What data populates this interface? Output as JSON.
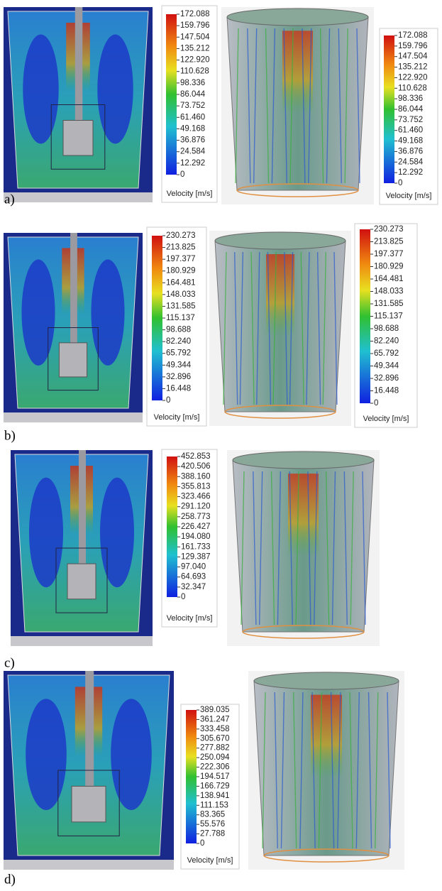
{
  "panels": [
    {
      "label": "a)",
      "colorbars": [
        {
          "ticks": [
            "172.088",
            "159.796",
            "147.504",
            "135.212",
            "122.920",
            "110.628",
            "98.336",
            "86.044",
            "73.752",
            "61.460",
            "49.168",
            "36.876",
            "24.584",
            "12.292",
            "0"
          ],
          "title": "Velocity [m/s]"
        },
        {
          "ticks": [
            "172.088",
            "159.796",
            "147.504",
            "135.212",
            "122.920",
            "110.628",
            "98.336",
            "86.044",
            "73.752",
            "61.460",
            "49.168",
            "36.876",
            "24.584",
            "12.292",
            "0"
          ],
          "title": "Velocity [m/s]"
        }
      ]
    },
    {
      "label": "b)",
      "colorbars": [
        {
          "ticks": [
            "230.273",
            "213.825",
            "197.377",
            "180.929",
            "164.481",
            "148.033",
            "131.585",
            "115.137",
            "98.688",
            "82.240",
            "65.792",
            "49.344",
            "32.896",
            "16.448",
            "0"
          ],
          "title": "Velocity [m/s]"
        },
        {
          "ticks": [
            "230.273",
            "213.825",
            "197.377",
            "180.929",
            "164.481",
            "148.033",
            "131.585",
            "115.137",
            "98.688",
            "82.240",
            "65.792",
            "49.344",
            "32.896",
            "16.448",
            "0"
          ],
          "title": "Velocity [m/s]"
        }
      ]
    },
    {
      "label": "c)",
      "colorbars": [
        {
          "ticks": [
            "452.853",
            "420.506",
            "388.160",
            "355.813",
            "323.466",
            "291.120",
            "258.773",
            "226.427",
            "194.080",
            "161.733",
            "129.387",
            "97.040",
            "64.693",
            "32.347",
            "0"
          ],
          "title": "Velocity [m/s]"
        }
      ]
    },
    {
      "label": "d)",
      "colorbars": [
        {
          "ticks": [
            "389.035",
            "361.247",
            "333.458",
            "305.670",
            "277.882",
            "250.094",
            "222.306",
            "194.517",
            "166.729",
            "138.941",
            "111.153",
            "83.365",
            "55.576",
            "27.788",
            "0"
          ],
          "title": "Velocity [m/s]"
        }
      ]
    }
  ]
}
